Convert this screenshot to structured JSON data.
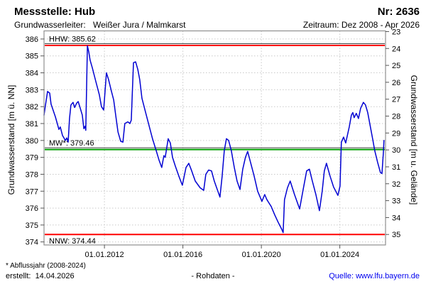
{
  "header": {
    "title": "Messstelle: Hub",
    "number": "Nr: 2636",
    "aquifer_label": "Grundwasserleiter:",
    "aquifer_value": "Weißer Jura / Malmkarst",
    "period": "Zeitraum: Dez 2008 - Apr 2026"
  },
  "footer": {
    "footnote": "* Abflussjahr (2008-2024)",
    "created": "erstellt:  14.04.2026",
    "data_type": "- Rohdaten -",
    "source": "Quelle: www.lfu.bayern.de"
  },
  "colors": {
    "series": "#0000d2",
    "hhw_nnw": "#ff0000",
    "mw": "#00a000",
    "grid": "#c9c9c9",
    "border": "#8f8f8f",
    "tick": "#555555",
    "label_underline": "#404040",
    "source_link": "#0000ee"
  },
  "chart_data": {
    "type": "line",
    "title": "Messstelle Hub (Nr. 2636) - Grundwasserstand Rohdaten",
    "xlabel": "",
    "ylabel_left": "Grundwasserstand [m ü. NN]",
    "ylabel_right": "Grundwasserstand [m u. Gelände]",
    "xlim": [
      2008.92,
      2026.33
    ],
    "ylim_left": [
      373.82,
      386.48
    ],
    "ground_reference": 409.44,
    "grid": true,
    "xticks": [
      {
        "t": 2012.0,
        "label": "01.01.2012"
      },
      {
        "t": 2016.0,
        "label": "01.01.2016"
      },
      {
        "t": 2020.0,
        "label": "01.01.2020"
      },
      {
        "t": 2024.0,
        "label": "01.01.2024"
      }
    ],
    "yticks_left": [
      374,
      375,
      376,
      377,
      378,
      379,
      380,
      381,
      382,
      383,
      384,
      385,
      386
    ],
    "yticks_right": [
      23,
      24,
      25,
      26,
      27,
      28,
      29,
      30,
      31,
      32,
      33,
      34,
      35
    ],
    "markers": [
      {
        "name": "HHW",
        "label": "HHW: 385.62",
        "value": 385.62,
        "color": "#ff0000",
        "label_position": "above",
        "underline": true
      },
      {
        "name": "MW",
        "label": "MW*: 379.46",
        "value": 379.46,
        "color": "#00a000",
        "label_position": "above",
        "underline": true
      },
      {
        "name": "NNW",
        "label": "NNW: 374.44",
        "value": 374.44,
        "color": "#ff0000",
        "label_position": "below",
        "underline": false
      }
    ],
    "series": [
      {
        "name": "Grundwasserstand (Rohdaten)",
        "color": "#0000d2",
        "points": [
          [
            2008.92,
            381.5
          ],
          [
            2008.99,
            382.05
          ],
          [
            2009.1,
            382.9
          ],
          [
            2009.21,
            382.8
          ],
          [
            2009.28,
            382.15
          ],
          [
            2009.5,
            381.4
          ],
          [
            2009.68,
            380.65
          ],
          [
            2009.75,
            380.8
          ],
          [
            2009.86,
            380.3
          ],
          [
            2010.01,
            380.0
          ],
          [
            2010.08,
            380.15
          ],
          [
            2010.15,
            379.9
          ],
          [
            2010.22,
            381.3
          ],
          [
            2010.29,
            382.1
          ],
          [
            2010.4,
            382.25
          ],
          [
            2010.48,
            381.95
          ],
          [
            2010.58,
            382.2
          ],
          [
            2010.66,
            382.3
          ],
          [
            2010.77,
            381.9
          ],
          [
            2010.87,
            381.5
          ],
          [
            2010.95,
            380.7
          ],
          [
            2011.02,
            380.85
          ],
          [
            2011.05,
            380.6
          ],
          [
            2011.13,
            385.6
          ],
          [
            2011.2,
            385.25
          ],
          [
            2011.27,
            384.75
          ],
          [
            2011.38,
            384.3
          ],
          [
            2011.56,
            383.5
          ],
          [
            2011.74,
            382.7
          ],
          [
            2011.85,
            382.0
          ],
          [
            2011.96,
            381.8
          ],
          [
            2012.1,
            384.0
          ],
          [
            2012.21,
            383.6
          ],
          [
            2012.36,
            382.9
          ],
          [
            2012.47,
            382.4
          ],
          [
            2012.58,
            381.45
          ],
          [
            2012.69,
            380.5
          ],
          [
            2012.83,
            379.95
          ],
          [
            2012.94,
            379.9
          ],
          [
            2013.04,
            381.0
          ],
          [
            2013.19,
            381.1
          ],
          [
            2013.3,
            381.0
          ],
          [
            2013.37,
            381.2
          ],
          [
            2013.48,
            384.6
          ],
          [
            2013.59,
            384.65
          ],
          [
            2013.7,
            384.2
          ],
          [
            2013.8,
            383.6
          ],
          [
            2013.91,
            382.5
          ],
          [
            2014.09,
            381.7
          ],
          [
            2014.27,
            380.9
          ],
          [
            2014.45,
            380.1
          ],
          [
            2014.64,
            379.4
          ],
          [
            2014.78,
            378.85
          ],
          [
            2014.92,
            378.4
          ],
          [
            2015.03,
            379.1
          ],
          [
            2015.1,
            379.0
          ],
          [
            2015.25,
            380.1
          ],
          [
            2015.36,
            379.85
          ],
          [
            2015.47,
            379.0
          ],
          [
            2015.61,
            378.5
          ],
          [
            2015.79,
            377.9
          ],
          [
            2015.97,
            377.35
          ],
          [
            2016.16,
            378.4
          ],
          [
            2016.3,
            378.65
          ],
          [
            2016.45,
            378.2
          ],
          [
            2016.63,
            377.6
          ],
          [
            2016.88,
            377.2
          ],
          [
            2017.06,
            377.05
          ],
          [
            2017.17,
            378.0
          ],
          [
            2017.31,
            378.25
          ],
          [
            2017.46,
            378.2
          ],
          [
            2017.6,
            377.6
          ],
          [
            2017.75,
            377.1
          ],
          [
            2017.89,
            376.65
          ],
          [
            2018.0,
            377.9
          ],
          [
            2018.11,
            379.4
          ],
          [
            2018.22,
            380.1
          ],
          [
            2018.33,
            380.0
          ],
          [
            2018.47,
            379.4
          ],
          [
            2018.62,
            378.4
          ],
          [
            2018.76,
            377.6
          ],
          [
            2018.91,
            377.1
          ],
          [
            2019.05,
            378.3
          ],
          [
            2019.19,
            379.0
          ],
          [
            2019.3,
            379.35
          ],
          [
            2019.45,
            378.7
          ],
          [
            2019.63,
            377.9
          ],
          [
            2019.81,
            377.0
          ],
          [
            2020.03,
            376.4
          ],
          [
            2020.17,
            376.8
          ],
          [
            2020.28,
            376.5
          ],
          [
            2020.5,
            376.1
          ],
          [
            2020.68,
            375.6
          ],
          [
            2020.86,
            375.15
          ],
          [
            2021.04,
            374.75
          ],
          [
            2021.11,
            374.55
          ],
          [
            2021.18,
            376.5
          ],
          [
            2021.33,
            377.2
          ],
          [
            2021.47,
            377.6
          ],
          [
            2021.69,
            376.8
          ],
          [
            2021.95,
            375.95
          ],
          [
            2022.13,
            377.1
          ],
          [
            2022.31,
            378.2
          ],
          [
            2022.45,
            378.3
          ],
          [
            2022.6,
            377.6
          ],
          [
            2022.78,
            376.8
          ],
          [
            2022.96,
            375.85
          ],
          [
            2023.1,
            377.0
          ],
          [
            2023.21,
            378.2
          ],
          [
            2023.32,
            378.65
          ],
          [
            2023.5,
            377.9
          ],
          [
            2023.68,
            377.25
          ],
          [
            2023.9,
            376.75
          ],
          [
            2024.01,
            377.3
          ],
          [
            2024.08,
            379.9
          ],
          [
            2024.19,
            380.2
          ],
          [
            2024.3,
            379.85
          ],
          [
            2024.48,
            380.8
          ],
          [
            2024.59,
            381.5
          ],
          [
            2024.66,
            381.65
          ],
          [
            2024.73,
            381.35
          ],
          [
            2024.84,
            381.6
          ],
          [
            2024.95,
            381.3
          ],
          [
            2025.06,
            381.9
          ],
          [
            2025.2,
            382.25
          ],
          [
            2025.31,
            382.1
          ],
          [
            2025.42,
            381.65
          ],
          [
            2025.56,
            380.8
          ],
          [
            2025.67,
            380.1
          ],
          [
            2025.78,
            379.4
          ],
          [
            2025.93,
            378.7
          ],
          [
            2026.07,
            378.1
          ],
          [
            2026.15,
            378.05
          ],
          [
            2026.22,
            379.3
          ],
          [
            2026.25,
            380.0
          ]
        ]
      }
    ]
  }
}
